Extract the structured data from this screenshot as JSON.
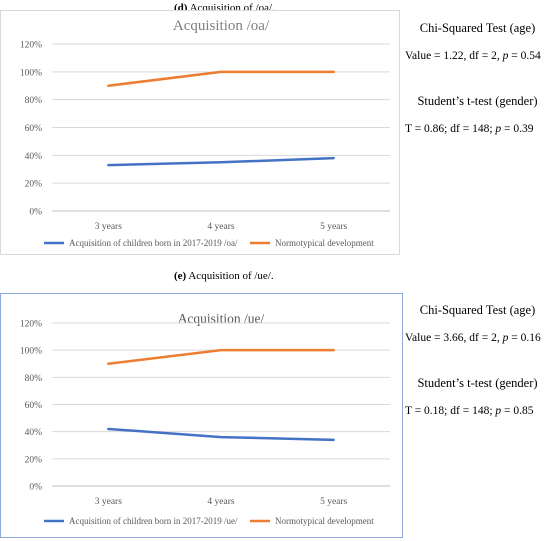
{
  "panels": [
    {
      "caption_letter": "(d)",
      "caption_text": " Acquisition of /oa/.",
      "chart_data": {
        "type": "line",
        "title": "Acquisition /oa/",
        "categories": [
          "3 years",
          "4 years",
          "5 years"
        ],
        "ylim": [
          0,
          120
        ],
        "yticks": [
          "0%",
          "20%",
          "40%",
          "60%",
          "80%",
          "100%",
          "120%"
        ],
        "grid": true,
        "legend_position": "bottom",
        "series": [
          {
            "name": "Acquisition of children born in 2017-2019  /oa/",
            "values": [
              33,
              35,
              38
            ],
            "color": "#4472C4"
          },
          {
            "name": "Normotypical development",
            "values": [
              90,
              100,
              100
            ],
            "color": "#ED7D31"
          }
        ]
      },
      "stats": {
        "chi_title": "Chi-Squared Test (age)",
        "chi_value": "Value = 1.22, df = 2, p = 0.54",
        "t_title": "Student’s t-test (gender)",
        "t_value": "T = 0.86; df = 148; p = 0.39"
      }
    },
    {
      "caption_letter": "(e)",
      "caption_text": " Acquisition of /ue/.",
      "chart_data": {
        "type": "line",
        "title": "Acquisition /ue/",
        "categories": [
          "3 years",
          "4 years",
          "5 years"
        ],
        "ylim": [
          0,
          120
        ],
        "yticks": [
          "0%",
          "20%",
          "40%",
          "60%",
          "80%",
          "100%",
          "120%"
        ],
        "grid": true,
        "legend_position": "bottom",
        "series": [
          {
            "name": "Acquisition of children born in 2017-2019  /ue/",
            "values": [
              42,
              36,
              34
            ],
            "color": "#4472C4"
          },
          {
            "name": "Normotypical development",
            "values": [
              90,
              100,
              100
            ],
            "color": "#ED7D31"
          }
        ]
      },
      "stats": {
        "chi_title": "Chi-Squared Test (age)",
        "chi_value": "Value = 3.66, df = 2, p = 0.16",
        "t_title": "Student’s t-test (gender)",
        "t_value": "T = 0.18; df = 148; p = 0.85"
      }
    }
  ]
}
